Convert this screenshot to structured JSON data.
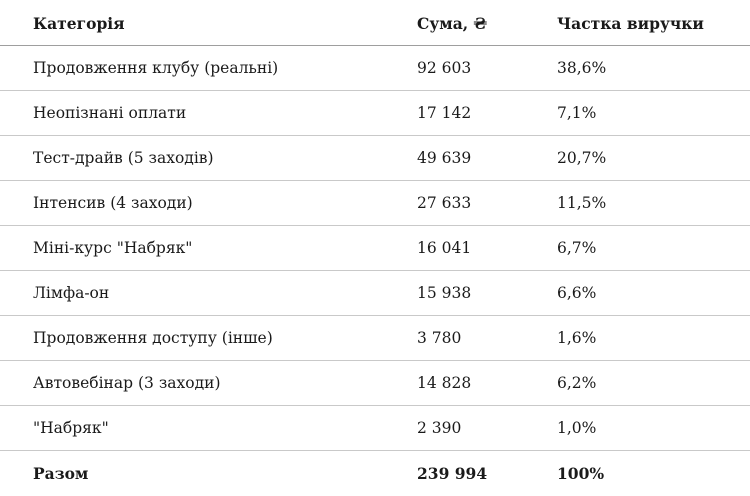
{
  "table": {
    "headers": [
      "Категорія",
      "Сума, ₴",
      "Частка виручки"
    ],
    "rows": [
      {
        "category": "Продовження клубу (реальні)",
        "amount": "92 603",
        "share": "38,6%"
      },
      {
        "category": "Неопізнані оплати",
        "amount": "17 142",
        "share": "7,1%"
      },
      {
        "category": "Тест-драйв (5 заходів)",
        "amount": "49 639",
        "share": "20,7%"
      },
      {
        "category": "Інтенсив (4 заходи)",
        "amount": "27 633",
        "share": "11,5%"
      },
      {
        "category": "Міні-курс \"Набряк\"",
        "amount": "16 041",
        "share": "6,7%"
      },
      {
        "category": "Лімфа-он",
        "amount": "15 938",
        "share": "6,6%"
      },
      {
        "category": "Продовження доступу (інше)",
        "amount": "3 780",
        "share": "1,6%"
      },
      {
        "category": "Автовебінар (3 заходи)",
        "amount": "14 828",
        "share": "6,2%"
      },
      {
        "category": "\"Набряк\"",
        "amount": "2 390",
        "share": "1,0%"
      }
    ],
    "total": {
      "category": "Разом",
      "amount": "239 994",
      "share": "100%"
    }
  }
}
